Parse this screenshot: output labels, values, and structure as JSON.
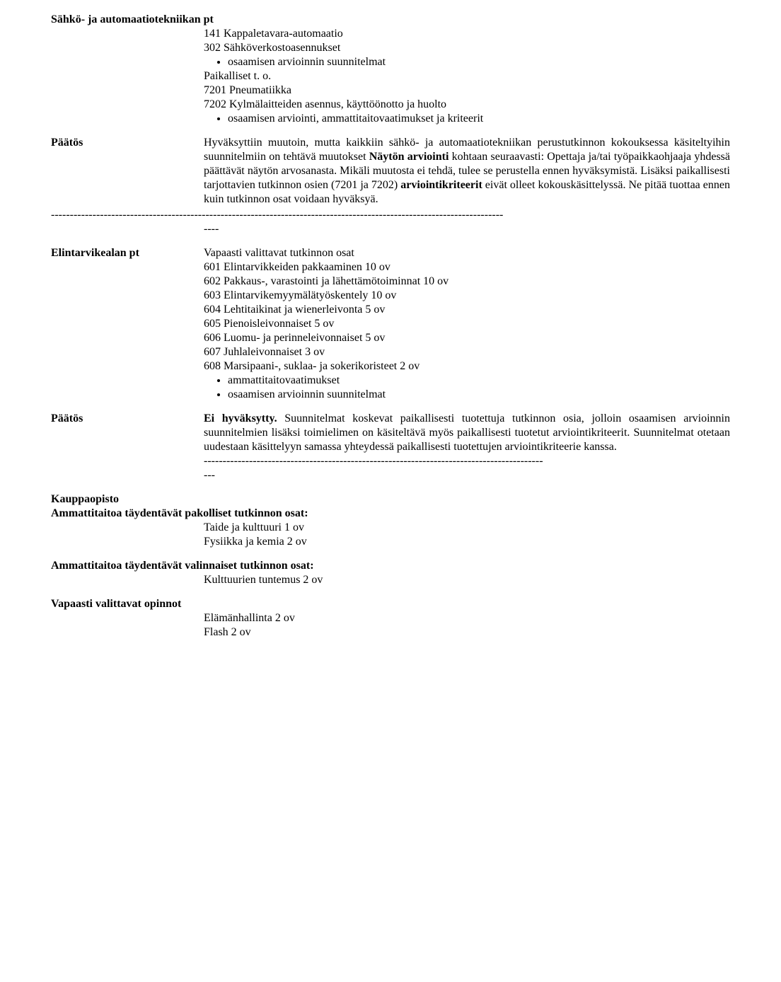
{
  "sec1": {
    "title": "Sähkö- ja automaatiotekniikan pt",
    "line1": "141 Kappaletavara-automaatio",
    "line2": "302 Sähköverkostoasennukset",
    "bullet1": "osaamisen arvioinnin suunnitelmat",
    "line3": "Paikalliset t. o.",
    "line4": "7201 Pneumatiikka",
    "line5": "7202 Kylmälaitteiden asennus, käyttöönotto ja huolto",
    "bullet2": "osaamisen arviointi, ammattitaitovaatimukset ja kriteerit"
  },
  "paatos1": {
    "label": "Päätös",
    "text_a": "Hyväksyttiin muutoin, mutta kaikkiin sähkö- ja automaatiotekniikan perustutkinnon kokouksessa käsiteltyihin suunnitelmiin on tehtävä muutokset ",
    "bold_b": "Näytön arviointi",
    "text_c": " kohtaan seuraavasti: Opettaja ja/tai työpaikkaohjaaja yhdessä päättävät näytön arvosanasta. Mikäli muutosta ei tehdä, tulee se perustella ennen hyväksymistä. Lisäksi paikallisesti tarjottavien tutkinnon osien (7201 ja 7202) ",
    "bold_d": "arviointikriteerit",
    "text_e": " eivät olleet kokouskäsittelyssä. Ne pitää tuottaa ennen kuin tutkinnon osat voidaan hyväksyä."
  },
  "dashes": {
    "full": "------------------------------------------------------------------------------------------------------------------------",
    "short_indent": "----",
    "mid": "------------------------------------------------------------------------------------------",
    "mid2": "---"
  },
  "sec2": {
    "title": "Elintarvikealan pt",
    "head": "Vapaasti valittavat tutkinnon osat",
    "i1": "601 Elintarvikkeiden pakkaaminen 10 ov",
    "i2": "602 Pakkaus-, varastointi ja lähettämötoiminnat  10 ov",
    "i3": "603 Elintarvikemyymälätyöskentely  10 ov",
    "i4": "604 Lehtitaikinat ja wienerleivonta  5 ov",
    "i5": "605 Pienoisleivonnaiset 5 ov",
    "i6": "606  Luomu- ja perinneleivonnaiset 5 ov",
    "i7": "607 Juhlaleivonnaiset 3 ov",
    "i8": "608 Marsipaani-, suklaa- ja sokerikoristeet 2 ov",
    "b1": "ammattitaitovaatimukset",
    "b2": "osaamisen arvioinnin suunnitelmat"
  },
  "paatos2": {
    "label": "Päätös",
    "bold_a": "Ei hyväksytty.",
    "text_b": " Suunnitelmat koskevat paikallisesti tuotettuja tutkinnon osia, jolloin osaamisen arvioinnin suunnitelmien lisäksi toimielimen on käsiteltävä myös paikallisesti tuotetut arviointikriteerit. Suunnitelmat otetaan uudestaan käsittelyyn samassa yhteydessä paikallisesti tuotettujen arviointikriteerie  kanssa."
  },
  "sec3": {
    "title": "Kauppaopisto",
    "sub1": "Ammattitaitoa täydentävät pakolliset tutkinnon osat:",
    "l1": "Taide ja kulttuuri 1 ov",
    "l2": "Fysiikka ja kemia 2 ov",
    "sub2": "Ammattitaitoa täydentävät valinnaiset tutkinnon osat:",
    "l3": "Kulttuurien tuntemus 2 ov",
    "sub3": "Vapaasti valittavat opinnot",
    "l4": "Elämänhallinta 2 ov",
    "l5": "Flash 2 ov"
  }
}
